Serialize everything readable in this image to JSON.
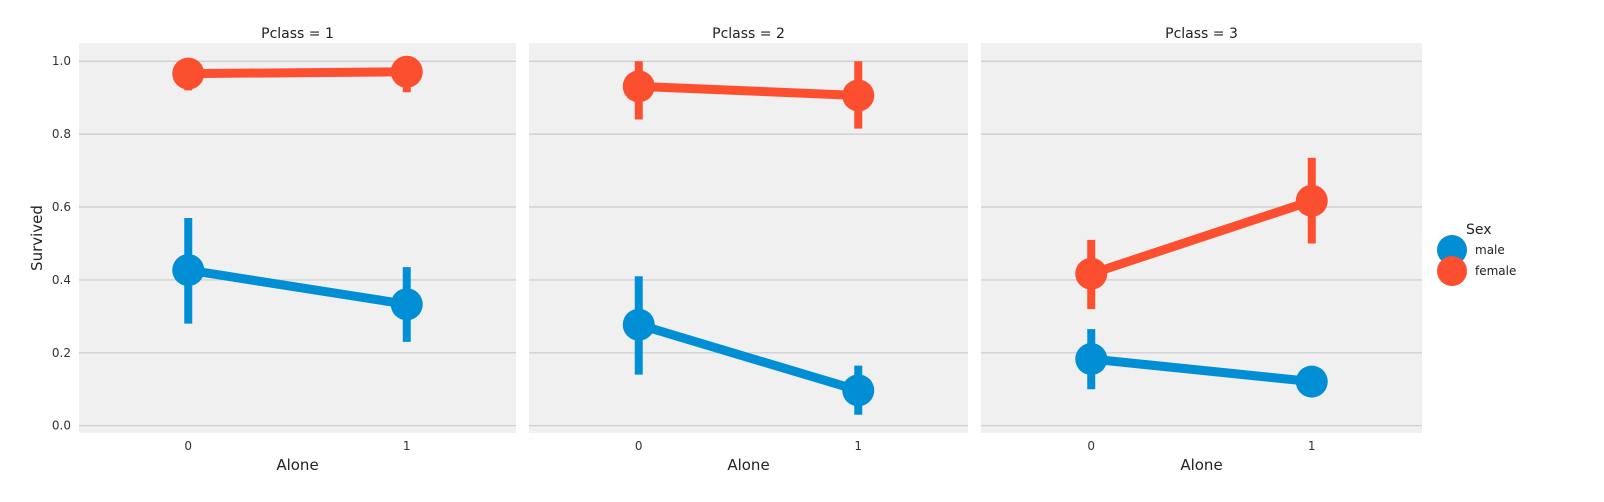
{
  "chart_data": {
    "type": "line",
    "subtype": "point-plot-facets",
    "ylabel": "Survived",
    "xlabel": "Alone",
    "categories": [
      "0",
      "1"
    ],
    "ylim": [
      -0.02,
      1.05
    ],
    "yticks": [
      "0.0",
      "0.2",
      "0.4",
      "0.6",
      "0.8",
      "1.0"
    ],
    "grid": true,
    "legend": {
      "title": "Sex",
      "placement": "right",
      "entries": [
        {
          "name": "male",
          "color": "#008fd5"
        },
        {
          "name": "female",
          "color": "#fc4f30"
        }
      ]
    },
    "facets": [
      {
        "title": "Pclass = 1",
        "series": [
          {
            "name": "male",
            "color": "#008fd5",
            "values": [
              0.427,
              0.333
            ],
            "ci": [
              [
                0.28,
                0.57
              ],
              [
                0.23,
                0.435
              ]
            ]
          },
          {
            "name": "female",
            "color": "#fc4f30",
            "values": [
              0.966,
              0.971
            ],
            "ci": [
              [
                0.92,
                1.0
              ],
              [
                0.915,
                1.0
              ]
            ]
          }
        ]
      },
      {
        "title": "Pclass = 2",
        "series": [
          {
            "name": "male",
            "color": "#008fd5",
            "values": [
              0.277,
              0.097
            ],
            "ci": [
              [
                0.14,
                0.41
              ],
              [
                0.03,
                0.165
              ]
            ]
          },
          {
            "name": "female",
            "color": "#fc4f30",
            "values": [
              0.931,
              0.906
            ],
            "ci": [
              [
                0.84,
                1.0
              ],
              [
                0.815,
                1.0
              ]
            ]
          }
        ]
      },
      {
        "title": "Pclass = 3",
        "series": [
          {
            "name": "male",
            "color": "#008fd5",
            "values": [
              0.183,
              0.121
            ],
            "ci": [
              [
                0.1,
                0.265
              ],
              [
                0.12,
                0.12
              ]
            ]
          },
          {
            "name": "female",
            "color": "#fc4f30",
            "values": [
              0.417,
              0.617
            ],
            "ci": [
              [
                0.32,
                0.51
              ],
              [
                0.5,
                0.735
              ]
            ]
          }
        ]
      }
    ]
  }
}
